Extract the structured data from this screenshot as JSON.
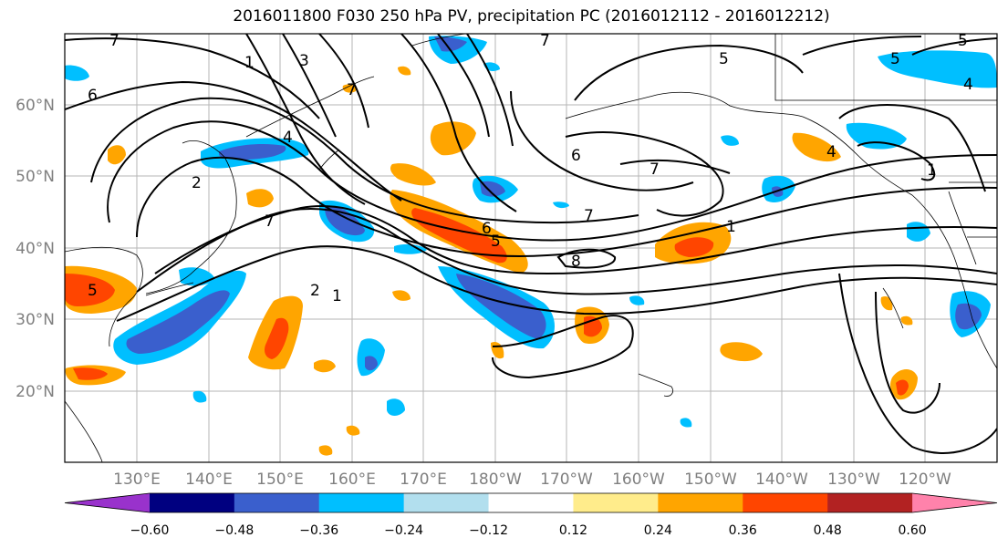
{
  "title": "2016011800 F030 250 hPa PV, precipitation PC (2016012112 - 2016012212)",
  "map": {
    "lat_labels": [
      "60°N",
      "50°N",
      "40°N",
      "30°N",
      "20°N"
    ],
    "lon_labels": [
      "130°E",
      "140°E",
      "150°E",
      "160°E",
      "170°E",
      "180°W",
      "170°W",
      "160°W",
      "150°W",
      "140°W",
      "130°W",
      "120°W"
    ],
    "contour_labels": [
      "7",
      "6",
      "5",
      "4",
      "3",
      "2",
      "1",
      "7",
      "6",
      "5",
      "8",
      "7",
      "1",
      "7",
      "5",
      "4",
      "2",
      "1",
      "5",
      "7",
      "6",
      "7",
      "4",
      "5",
      "1"
    ]
  },
  "colorbar": {
    "colors": [
      "#9932cc",
      "#000080",
      "#3a5fcd",
      "#00bfff",
      "#b2dfee",
      "#ffffff",
      "#ffec8b",
      "#ffa500",
      "#ff4500",
      "#b22222",
      "#ff82ab"
    ],
    "labels": [
      "−0.60",
      "−0.48",
      "−0.36",
      "−0.24",
      "−0.12",
      "0.12",
      "0.24",
      "0.36",
      "0.48",
      "0.60"
    ]
  }
}
